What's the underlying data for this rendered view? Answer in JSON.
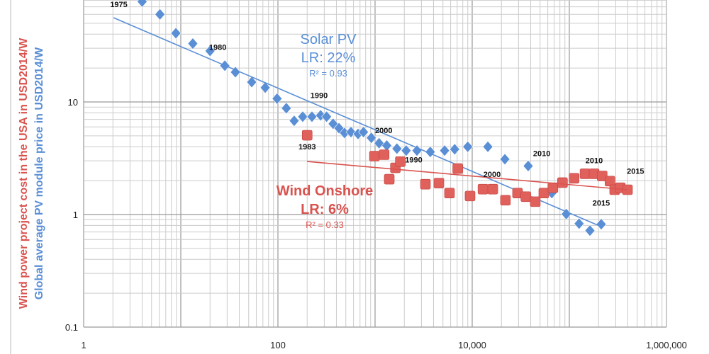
{
  "chart_data": {
    "type": "scatter",
    "xscale": "log",
    "yscale": "log",
    "xlim": [
      1,
      1000000
    ],
    "ylim": [
      0.1,
      80
    ],
    "grid": true,
    "xticks": [
      "1",
      "100",
      "10,000",
      "1,000,000"
    ],
    "yticks": [
      "0.1",
      "1",
      "10"
    ],
    "ylabel_wind": "Wind power project cost in the USA in USD2014/W",
    "ylabel_solar": "Global average PV module price in USD2014/W",
    "colors": {
      "solar": "#5a8fd6",
      "wind": "#d9534f"
    },
    "series": [
      {
        "name": "Solar PV",
        "marker": "diamond",
        "annotation": {
          "title": "Solar PV",
          "lr": "LR: 22%",
          "r2": "R² = 0.93"
        },
        "x": [
          4,
          6.1,
          8.9,
          13.3,
          20,
          28.4,
          36.5,
          53.7,
          74,
          98,
          122,
          147,
          180,
          224,
          275,
          317,
          370,
          425,
          485,
          565,
          668,
          760,
          915,
          1100,
          1320,
          1680,
          2090,
          2700,
          3700,
          5200,
          6600,
          9000,
          14500,
          21700,
          37700,
          66000,
          93000,
          126000,
          163000,
          213000
        ],
        "y": [
          78,
          60,
          40.8,
          33,
          28.4,
          21,
          18.4,
          15,
          13.4,
          10.7,
          8.8,
          6.8,
          7.4,
          7.4,
          7.6,
          7.4,
          6.4,
          5.85,
          5.3,
          5.4,
          5.2,
          5.4,
          4.8,
          4.3,
          4.1,
          3.85,
          3.7,
          3.7,
          3.6,
          3.7,
          3.8,
          4.0,
          4.0,
          3.1,
          2.7,
          1.55,
          1.01,
          0.83,
          0.72,
          0.82
        ],
        "trend": {
          "x": [
            2.03,
            213000
          ],
          "y": [
            56,
            0.78
          ]
        },
        "year_labels": [
          {
            "text": "1975",
            "x": 2.3,
            "y": 82
          },
          {
            "text": "1980",
            "x": 24,
            "y": 29
          },
          {
            "text": "1990",
            "x": 265,
            "y": 10.8
          },
          {
            "text": "2000",
            "x": 1230,
            "y": 5.3
          },
          {
            "text": "2010",
            "x": 52000,
            "y": 3.3
          },
          {
            "text": "2015",
            "x": 213000,
            "y": 1.2
          }
        ]
      },
      {
        "name": "Wind Onshore",
        "marker": "square",
        "annotation": {
          "title": "Wind Onshore",
          "lr": "LR: 6%",
          "r2": "R² = 0.33"
        },
        "x": [
          200,
          985,
          1240,
          1400,
          1620,
          1820,
          3300,
          4540,
          5840,
          7100,
          9500,
          12900,
          16300,
          22000,
          29300,
          35700,
          44600,
          54600,
          67800,
          85000,
          112000,
          145000,
          180000,
          218000,
          262000,
          293000,
          335000,
          397000
        ],
        "y": [
          5.06,
          3.3,
          3.4,
          2.06,
          2.6,
          2.95,
          1.86,
          1.9,
          1.55,
          2.56,
          1.46,
          1.68,
          1.68,
          1.34,
          1.55,
          1.44,
          1.3,
          1.55,
          1.73,
          1.92,
          2.1,
          2.3,
          2.3,
          2.2,
          1.98,
          1.66,
          1.73,
          1.66
        ],
        "trend": {
          "x": [
            200,
            397000
          ],
          "y": [
            2.96,
            1.66
          ]
        },
        "year_labels": [
          {
            "text": "1983",
            "x": 200,
            "y": 3.8
          },
          {
            "text": "1990",
            "x": 2500,
            "y": 2.9
          },
          {
            "text": "2000",
            "x": 16000,
            "y": 2.15
          },
          {
            "text": "2010",
            "x": 180000,
            "y": 2.85
          },
          {
            "text": "2015",
            "x": 480000,
            "y": 2.3
          }
        ]
      }
    ]
  }
}
